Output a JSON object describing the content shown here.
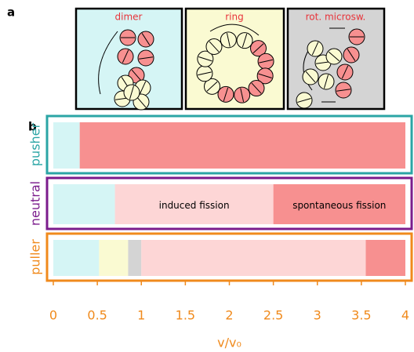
{
  "panel_a_label": "a",
  "panel_b_label": "b",
  "chart_data": {
    "type": "stacked-barh",
    "categories": [
      "pusher",
      "neutral",
      "puller"
    ],
    "category_colors": [
      "#2ba5a5",
      "#7b1c8c",
      "#f08a1c"
    ],
    "series": [
      {
        "name": "dimer",
        "color": "#d5f5f5",
        "values": [
          0.3,
          0.7,
          0.52
        ]
      },
      {
        "name": "ring",
        "color": "#fafad2",
        "values": [
          0,
          0,
          0.33
        ]
      },
      {
        "name": "rot. microsw.",
        "color": "#d4d4d4",
        "values": [
          0,
          0,
          0.15
        ]
      },
      {
        "name": "induced fission",
        "color": "#fdd6d6",
        "values": [
          0,
          1.8,
          2.55
        ]
      },
      {
        "name": "spontaneous fission",
        "color": "#f79090",
        "values": [
          3.7,
          1.5,
          0.45
        ]
      }
    ],
    "xlim": [
      0,
      4
    ],
    "xticks": [
      0,
      0.5,
      1,
      1.5,
      2,
      2.5,
      3,
      3.5,
      4
    ],
    "xlabel": "v/v₀"
  }
}
